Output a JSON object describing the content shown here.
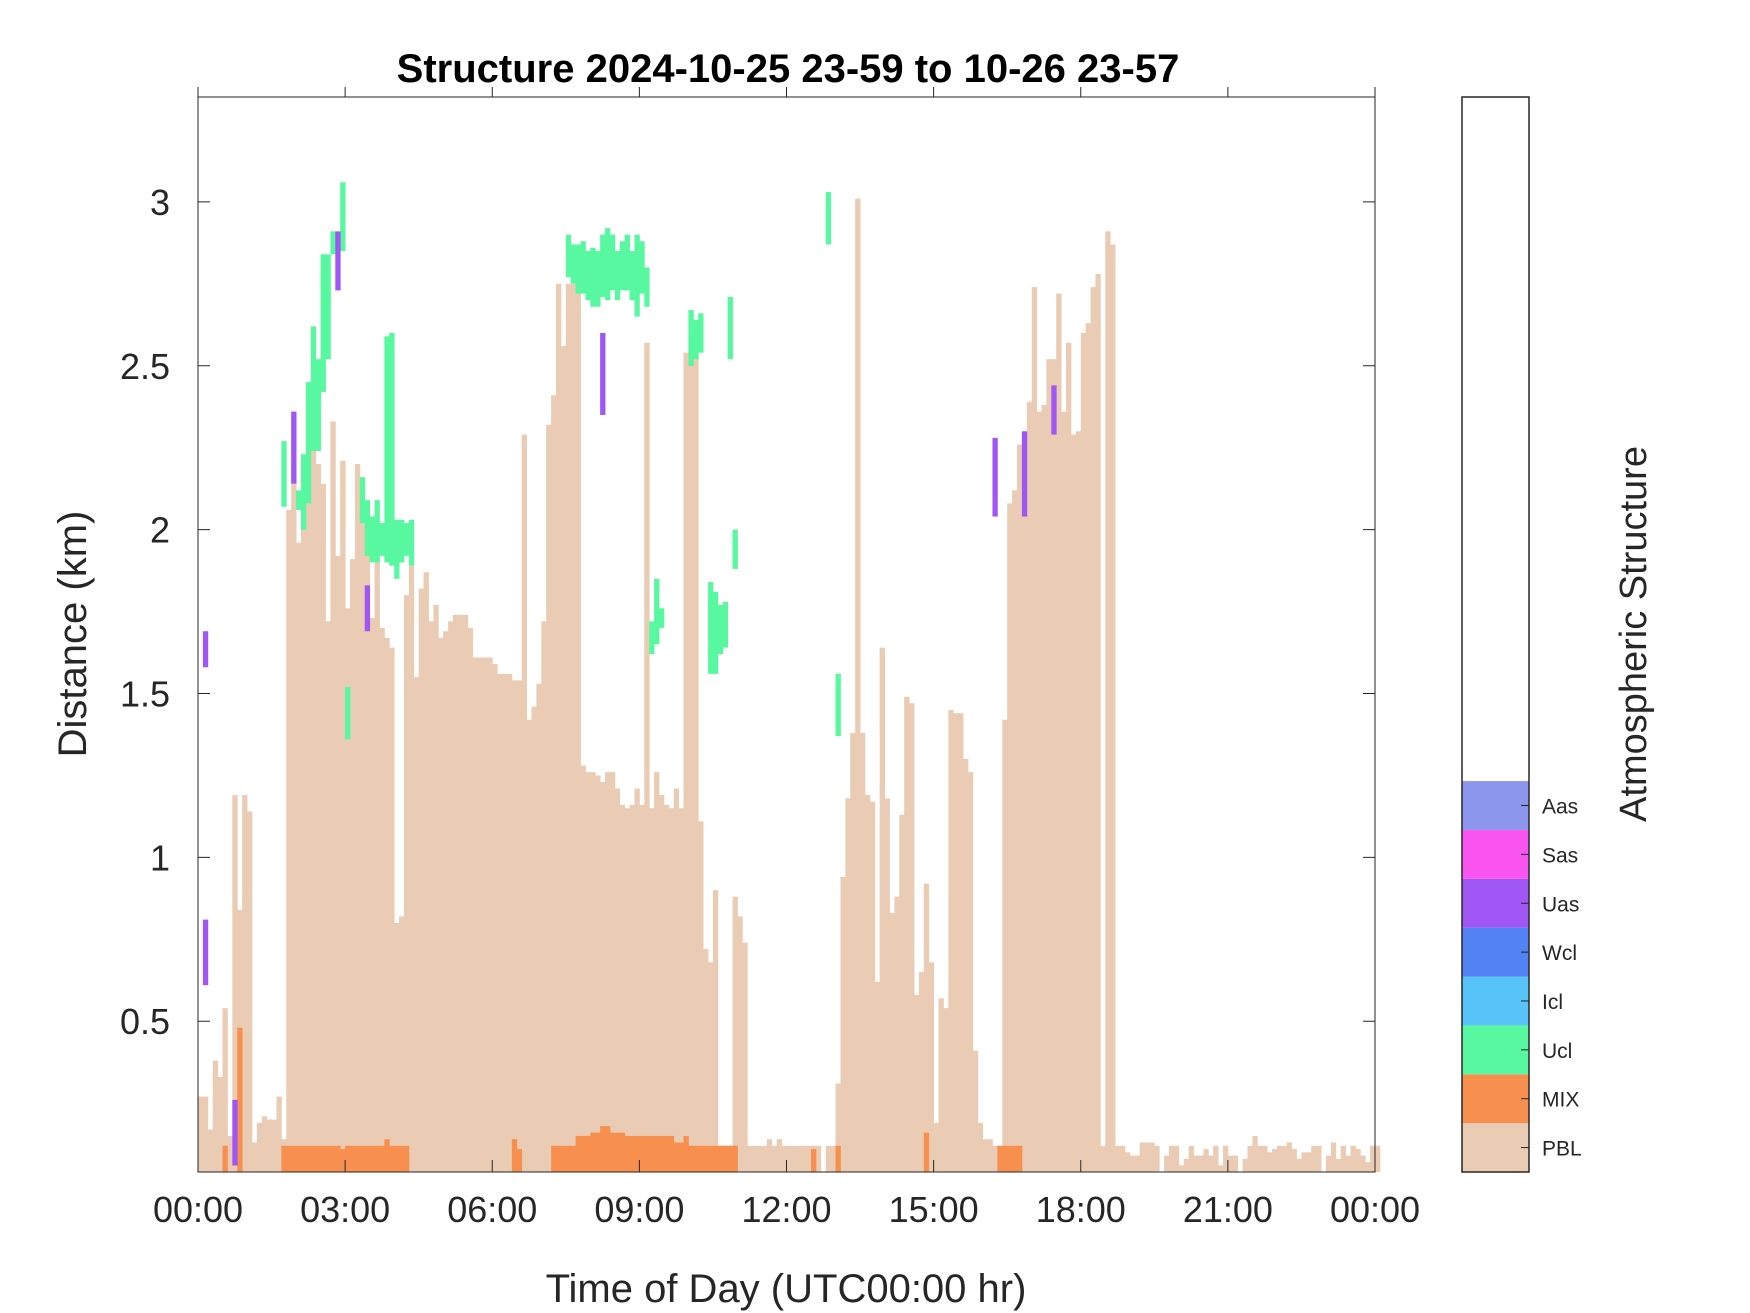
{
  "chart_data": {
    "type": "bar",
    "title": "Structure 2024-10-25 23-59 to 10-26 23-57",
    "xlabel": "Time of Day (UTC00:00 hr)",
    "ylabel": "Distance (km)",
    "xlim": [
      0,
      24
    ],
    "ylim": [
      0.04,
      3.32
    ],
    "x_ticks": [
      "00:00",
      "03:00",
      "06:00",
      "09:00",
      "12:00",
      "15:00",
      "18:00",
      "21:00",
      "00:00"
    ],
    "y_ticks": [
      "0.5",
      "1",
      "1.5",
      "2",
      "2.5",
      "3"
    ],
    "bin_width_hr": 0.1,
    "colorbar": {
      "title": "Atmospheric Structure",
      "classes": [
        {
          "key": "PBL",
          "label": "PBL",
          "color": "#EACBB4"
        },
        {
          "key": "MIX",
          "label": "MIX",
          "color": "#F7904F"
        },
        {
          "key": "Ucl",
          "label": "Ucl",
          "color": "#57F8A0"
        },
        {
          "key": "Icl",
          "label": "Icl",
          "color": "#58C3F8"
        },
        {
          "key": "Wcl",
          "label": "Wcl",
          "color": "#5382F4"
        },
        {
          "key": "Uas",
          "label": "Uas",
          "color": "#A055F5"
        },
        {
          "key": "Sas",
          "label": "Sas",
          "color": "#FA55F0"
        },
        {
          "key": "Aas",
          "label": "Aas",
          "color": "#8C96EC"
        }
      ]
    },
    "series": [
      {
        "name": "PBL",
        "bin_start_hr": 0,
        "values": [
          0.27,
          0.27,
          0.17,
          0.38,
          0.33,
          0.54,
          0.15,
          1.19,
          0.84,
          1.19,
          1.14,
          0.13,
          0.19,
          0.21,
          0.2,
          0.2,
          0.27,
          0.14,
          2.06,
          2.14,
          1.96,
          2.06,
          2.27,
          2.35,
          2.2,
          2.14,
          1.72,
          2.33,
          1.92,
          2.21,
          1.76,
          1.91,
          2.2,
          2.08,
          1.97,
          1.73,
          1.9,
          1.7,
          1.67,
          1.64,
          0.8,
          0.82,
          1.8,
          1.89,
          1.55,
          1.82,
          1.87,
          1.72,
          1.77,
          1.67,
          1.69,
          1.72,
          1.74,
          1.74,
          1.74,
          1.7,
          1.61,
          1.61,
          1.61,
          1.61,
          1.59,
          1.56,
          1.56,
          1.56,
          1.54,
          1.54,
          2.29,
          1.42,
          1.46,
          1.53,
          1.72,
          2.32,
          2.41,
          2.75,
          2.56,
          2.75,
          2.75,
          2.75,
          1.28,
          1.26,
          1.26,
          1.25,
          1.23,
          1.26,
          1.26,
          1.21,
          1.16,
          1.15,
          1.16,
          1.21,
          1.16,
          2.57,
          1.15,
          1.26,
          1.19,
          1.16,
          1.15,
          1.21,
          1.15,
          2.54,
          2.6,
          2.6,
          1.11,
          0.72,
          0.68,
          0.9,
          0.12,
          0.12,
          0.12,
          0.88,
          0.82,
          0.74,
          0.12,
          0.12,
          0.12,
          0.12,
          0.14,
          0.12,
          0.14,
          0.12,
          0.12,
          0.12,
          0.12,
          0.12,
          0.12,
          0.12,
          0.12,
          0.04,
          0.12,
          0.12,
          0.31,
          0.94,
          1.18,
          1.38,
          3.01,
          1.38,
          1.19,
          1.17,
          0.62,
          1.64,
          1.18,
          0.83,
          0.88,
          1.13,
          1.49,
          1.47,
          0.58,
          0.65,
          0.92,
          0.68,
          0.19,
          0.57,
          0.54,
          1.45,
          1.44,
          1.44,
          1.3,
          1.26,
          0.41,
          0.19,
          0.14,
          0.14,
          0.12,
          0.12,
          1.42,
          2.08,
          2.12,
          2.26,
          2.16,
          2.39,
          2.74,
          2.36,
          2.38,
          2.52,
          2.52,
          2.72,
          2.36,
          2.57,
          2.29,
          2.3,
          2.6,
          2.63,
          2.74,
          2.78,
          0.12,
          2.91,
          2.87,
          0.12,
          0.12,
          0.1,
          0.09,
          0.09,
          0.13,
          0.13,
          0.13,
          0.12,
          0.04,
          0.09,
          0.12,
          0.12,
          0.06,
          0.08,
          0.12,
          0.09,
          0.09,
          0.11,
          0.09,
          0.12,
          0.06,
          0.12,
          0.09,
          0.09,
          0.04,
          0.08,
          0.12,
          0.15,
          0.12,
          0.12,
          0.1,
          0.11,
          0.12,
          0.12,
          0.13,
          0.11,
          0.08,
          0.1,
          0.1,
          0.12,
          0.12,
          0.04,
          0.09,
          0.13,
          0.08,
          0.12,
          0.09,
          0.12,
          0.11,
          0.09,
          0.07,
          0.12,
          0.12
        ]
      },
      {
        "name": "MIX",
        "segments": [
          [
            0.5,
            0.6,
            0.04,
            0.12
          ],
          [
            0.8,
            0.9,
            0.04,
            0.48
          ],
          [
            1.7,
            2.9,
            0.04,
            0.12
          ],
          [
            2.9,
            3.0,
            0.04,
            0.11
          ],
          [
            3.0,
            3.8,
            0.04,
            0.12
          ],
          [
            3.8,
            3.9,
            0.04,
            0.14
          ],
          [
            3.9,
            4.3,
            0.04,
            0.12
          ],
          [
            6.4,
            6.5,
            0.04,
            0.14
          ],
          [
            6.5,
            6.6,
            0.04,
            0.11
          ],
          [
            7.2,
            7.7,
            0.04,
            0.12
          ],
          [
            7.7,
            8.0,
            0.04,
            0.15
          ],
          [
            8.0,
            8.2,
            0.04,
            0.16
          ],
          [
            8.2,
            8.4,
            0.04,
            0.18
          ],
          [
            8.4,
            8.7,
            0.04,
            0.16
          ],
          [
            8.7,
            8.9,
            0.04,
            0.15
          ],
          [
            8.9,
            9.7,
            0.04,
            0.15
          ],
          [
            9.7,
            9.9,
            0.04,
            0.13
          ],
          [
            9.9,
            10.0,
            0.04,
            0.15
          ],
          [
            10.0,
            11.0,
            0.04,
            0.12
          ],
          [
            12.5,
            12.6,
            0.04,
            0.11
          ],
          [
            13.0,
            13.1,
            0.04,
            0.12
          ],
          [
            14.8,
            14.9,
            0.04,
            0.16
          ],
          [
            16.3,
            16.8,
            0.04,
            0.12
          ]
        ]
      },
      {
        "name": "Ucl",
        "segments": [
          [
            1.7,
            1.8,
            2.07,
            2.27
          ],
          [
            2.0,
            2.1,
            2.06,
            2.12
          ],
          [
            2.1,
            2.2,
            2.0,
            2.23
          ],
          [
            2.2,
            2.3,
            2.08,
            2.45
          ],
          [
            2.3,
            2.4,
            2.24,
            2.62
          ],
          [
            2.4,
            2.5,
            2.24,
            2.52
          ],
          [
            2.5,
            2.6,
            2.42,
            2.84
          ],
          [
            2.6,
            2.7,
            2.52,
            2.84
          ],
          [
            2.7,
            2.8,
            2.84,
            2.91
          ],
          [
            2.9,
            3.0,
            2.85,
            3.06
          ],
          [
            3.0,
            3.1,
            1.36,
            1.52
          ],
          [
            3.3,
            3.4,
            2.02,
            2.16
          ],
          [
            3.4,
            3.5,
            1.92,
            2.09
          ],
          [
            3.5,
            3.6,
            1.9,
            2.04
          ],
          [
            3.6,
            3.7,
            1.9,
            2.09
          ],
          [
            3.7,
            3.8,
            1.92,
            2.02
          ],
          [
            3.8,
            3.9,
            1.9,
            2.59
          ],
          [
            3.9,
            4.0,
            1.89,
            2.6
          ],
          [
            4.0,
            4.1,
            1.85,
            2.03
          ],
          [
            4.1,
            4.2,
            1.9,
            2.03
          ],
          [
            4.2,
            4.3,
            1.92,
            2.02
          ],
          [
            4.3,
            4.4,
            1.89,
            2.03
          ],
          [
            7.5,
            7.6,
            2.77,
            2.9
          ],
          [
            7.6,
            7.7,
            2.75,
            2.87
          ],
          [
            7.7,
            7.8,
            2.72,
            2.87
          ],
          [
            7.8,
            7.9,
            2.72,
            2.88
          ],
          [
            7.9,
            8.0,
            2.7,
            2.85
          ],
          [
            8.0,
            8.1,
            2.68,
            2.86
          ],
          [
            8.1,
            8.2,
            2.68,
            2.85
          ],
          [
            8.2,
            8.3,
            2.71,
            2.9
          ],
          [
            8.3,
            8.4,
            2.7,
            2.92
          ],
          [
            8.4,
            8.5,
            2.73,
            2.9
          ],
          [
            8.5,
            8.6,
            2.7,
            2.85
          ],
          [
            8.6,
            8.7,
            2.73,
            2.88
          ],
          [
            8.7,
            8.8,
            2.73,
            2.9
          ],
          [
            8.8,
            8.9,
            2.7,
            2.85
          ],
          [
            8.9,
            9.0,
            2.65,
            2.9
          ],
          [
            9.0,
            9.1,
            2.72,
            2.88
          ],
          [
            9.1,
            9.2,
            2.68,
            2.8
          ],
          [
            9.2,
            9.3,
            1.62,
            1.72
          ],
          [
            9.3,
            9.4,
            1.65,
            1.85
          ],
          [
            9.4,
            9.5,
            1.7,
            1.76
          ],
          [
            10.0,
            10.1,
            2.5,
            2.67
          ],
          [
            10.1,
            10.2,
            2.52,
            2.64
          ],
          [
            10.2,
            10.3,
            2.54,
            2.66
          ],
          [
            10.4,
            10.5,
            1.56,
            1.84
          ],
          [
            10.5,
            10.6,
            1.56,
            1.81
          ],
          [
            10.6,
            10.7,
            1.62,
            1.77
          ],
          [
            10.7,
            10.8,
            1.64,
            1.78
          ],
          [
            10.8,
            10.9,
            2.52,
            2.71
          ],
          [
            10.9,
            11.0,
            1.88,
            2.0
          ],
          [
            12.8,
            12.9,
            2.87,
            3.03
          ],
          [
            13.0,
            13.1,
            1.37,
            1.56
          ]
        ]
      },
      {
        "name": "Uas",
        "segments": [
          [
            0.1,
            0.2,
            1.58,
            1.69
          ],
          [
            0.1,
            0.2,
            0.61,
            0.81
          ],
          [
            0.7,
            0.8,
            0.06,
            0.26
          ],
          [
            1.9,
            2.0,
            2.14,
            2.36
          ],
          [
            2.8,
            2.9,
            2.73,
            2.91
          ],
          [
            3.4,
            3.5,
            1.69,
            1.83
          ],
          [
            8.2,
            8.3,
            2.35,
            2.6
          ],
          [
            16.2,
            16.3,
            2.04,
            2.28
          ],
          [
            16.8,
            16.9,
            2.04,
            2.3
          ],
          [
            17.4,
            17.5,
            2.29,
            2.44
          ]
        ]
      }
    ]
  }
}
